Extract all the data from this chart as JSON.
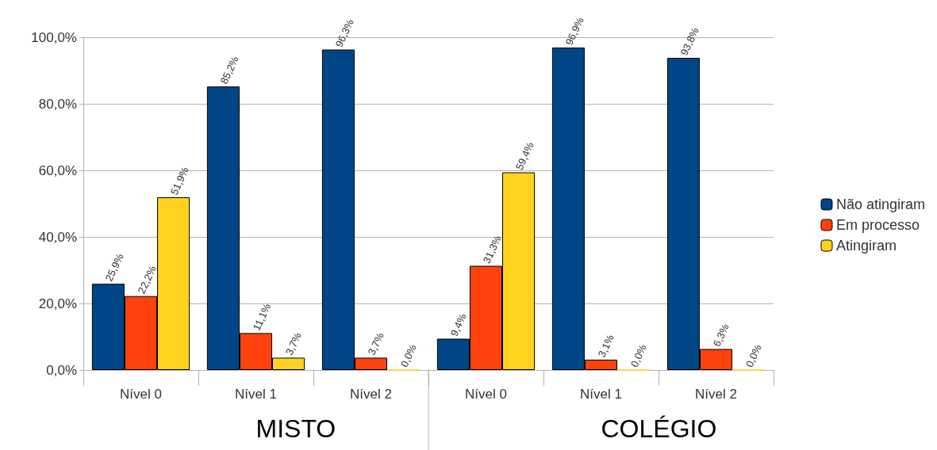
{
  "chart_data": {
    "type": "bar",
    "categories": [
      "Nível 0",
      "Nível 1",
      "Nível 2",
      "Nível 0",
      "Nível 1",
      "Nível 2"
    ],
    "series": [
      {
        "name": "Não atingiram",
        "color": "#004586",
        "values": [
          25.9,
          85.2,
          96.3,
          9.4,
          96.9,
          93.8
        ],
        "value_labels": [
          "25,9%",
          "85,2%",
          "96,3%",
          "9,4%",
          "96,9%",
          "93,8%"
        ]
      },
      {
        "name": "Em processo",
        "color": "#ff420e",
        "values": [
          22.2,
          11.1,
          3.7,
          31.3,
          3.1,
          6.3
        ],
        "value_labels": [
          "22,2%",
          "11,1%",
          "3,7%",
          "31,3%",
          "3,1%",
          "6,3%"
        ]
      },
      {
        "name": "Atingiram",
        "color": "#ffd320",
        "values": [
          51.9,
          3.7,
          0.0,
          59.4,
          0.0,
          0.0
        ],
        "value_labels": [
          "51,9%",
          "3,7%",
          "0,0%",
          "59,4%",
          "0,0%",
          "0,0%"
        ]
      }
    ],
    "ylim": [
      0,
      100
    ],
    "yticks": [
      {
        "value": 0,
        "label": "0,0%"
      },
      {
        "value": 20,
        "label": "20,0%"
      },
      {
        "value": 40,
        "label": "40,0%"
      },
      {
        "value": 60,
        "label": "60,0%"
      },
      {
        "value": 80,
        "label": "80,0%"
      },
      {
        "value": 100,
        "label": "100,0%"
      }
    ],
    "annotations": [
      "MISTO",
      "COLÉGIO"
    ],
    "grid": "y",
    "legend": "right"
  }
}
